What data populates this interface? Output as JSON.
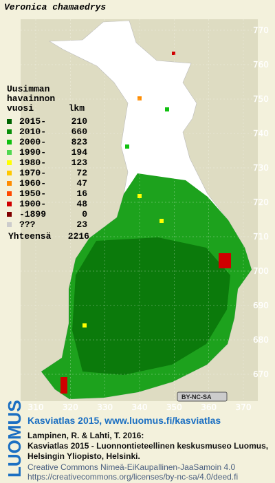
{
  "header": {
    "title": "Veronica chamaedrys"
  },
  "legend": {
    "heading": [
      "Uusimman",
      "havainnon",
      "vuosi"
    ],
    "count_heading": "lkm",
    "entries": [
      {
        "label": "2015-",
        "count": 210,
        "color": "#006400"
      },
      {
        "label": "2010-",
        "count": 660,
        "color": "#0a8f0a"
      },
      {
        "label": "2000-",
        "count": 823,
        "color": "#10c010"
      },
      {
        "label": "1990-",
        "count": 194,
        "color": "#50d850"
      },
      {
        "label": "1980-",
        "count": 123,
        "color": "#ffff00"
      },
      {
        "label": "1970-",
        "count": 72,
        "color": "#ffc800"
      },
      {
        "label": "1960-",
        "count": 47,
        "color": "#ff8c00"
      },
      {
        "label": "1950-",
        "count": 16,
        "color": "#ff4a00"
      },
      {
        "label": "1900-",
        "count": 48,
        "color": "#d00000"
      },
      {
        "label": "-1899",
        "count": 0,
        "color": "#800000"
      },
      {
        "label": "???",
        "count": 23,
        "color": "#cccccc"
      }
    ],
    "total_label": "Yhteensä",
    "total": 2216
  },
  "map": {
    "y_ticks": [
      770,
      760,
      750,
      740,
      730,
      720,
      710,
      700,
      690,
      680,
      670
    ],
    "x_ticks": [
      310,
      320,
      330,
      340,
      350,
      360,
      370
    ],
    "license_badge": "BY-NC-SA"
  },
  "footer": {
    "brand": "LUOMUS",
    "heading": "Kasviatlas 2015, www.luomus.fi/kasviatlas",
    "citation": [
      "Lampinen, R. & Lahti, T. 2016:",
      "Kasviatlas 2015 - Luonnontieteellinen keskusmuseo Luomus,",
      "Helsingin Yliopisto, Helsinki."
    ],
    "license": [
      "Creative Commons Nimeä-EiKaupallinen-JaaSamoin 4.0",
      "https://creativecommons.org/licenses/by-nc-sa/4.0/deed.fi"
    ]
  }
}
